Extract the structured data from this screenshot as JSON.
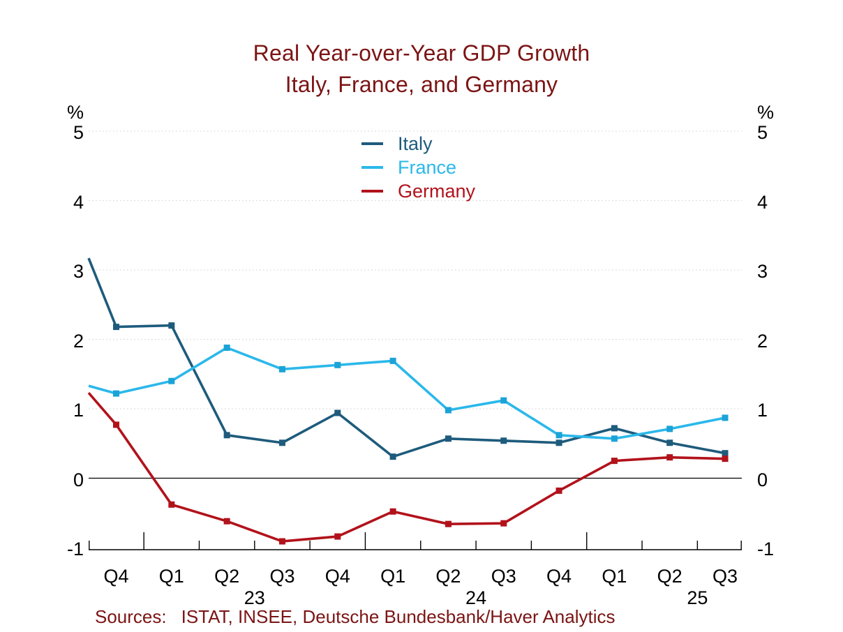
{
  "header": {
    "title_line1": "Real Year-over-Year GDP Growth",
    "title_line2": "Italy, France, and Germany"
  },
  "footer": {
    "sources_label": "Sources:",
    "sources_text": "ISTAT, INSEE, Deutsche Bundesbank/Haver Analytics"
  },
  "colors": {
    "title": "#7B1414",
    "background": "#FFFFFF",
    "gridline": "#D9D9D9",
    "axis": "#000000"
  },
  "chart_data": {
    "type": "line",
    "title": "Real Year-over-Year GDP Growth - Italy, France, and Germany",
    "unit_label": "%",
    "ylabel": "%",
    "ylim": [
      -1,
      5
    ],
    "y_ticks": [
      5,
      4,
      3,
      2,
      1,
      0,
      -1
    ],
    "grid": "horizontal-dotted-at-positive-ticks, solid-line-at-zero",
    "legend_position": "top-center",
    "categories": [
      "Q4",
      "Q1",
      "Q2",
      "Q3",
      "Q4",
      "Q1",
      "Q2",
      "Q3",
      "Q4",
      "Q1",
      "Q2",
      "Q3"
    ],
    "category_periods": [
      "2022Q4",
      "2023Q1",
      "2023Q2",
      "2023Q3",
      "2023Q4",
      "2024Q1",
      "2024Q2",
      "2024Q3",
      "2024Q4",
      "2025Q1",
      "2025Q2",
      "2025Q3"
    ],
    "years": [
      {
        "label": "23",
        "between": [
          2,
          3
        ]
      },
      {
        "label": "24",
        "between": [
          6,
          7
        ]
      },
      {
        "label": "25",
        "between": [
          10,
          11
        ]
      }
    ],
    "year_boundaries_after": [
      0,
      4,
      8
    ],
    "series": [
      {
        "name": "Italy",
        "color": "#1E5B7C",
        "marker_color": "#1E5B7C",
        "edge_start": 3.17,
        "values": [
          2.18,
          2.2,
          0.62,
          0.51,
          0.94,
          0.31,
          0.57,
          0.54,
          0.51,
          0.72,
          0.51,
          0.36
        ]
      },
      {
        "name": "France",
        "color": "#2BB8EA",
        "marker_color": "#1BA3D7",
        "edge_start": 1.33,
        "values": [
          1.22,
          1.4,
          1.88,
          1.57,
          1.63,
          1.69,
          0.98,
          1.12,
          0.62,
          0.57,
          0.71,
          0.87
        ]
      },
      {
        "name": "Germany",
        "color": "#B2121B",
        "marker_color": "#B2121B",
        "edge_start": 1.23,
        "values": [
          0.77,
          -0.38,
          -0.62,
          -0.91,
          -0.84,
          -0.48,
          -0.66,
          -0.65,
          -0.18,
          0.25,
          0.3,
          0.28
        ]
      }
    ]
  }
}
